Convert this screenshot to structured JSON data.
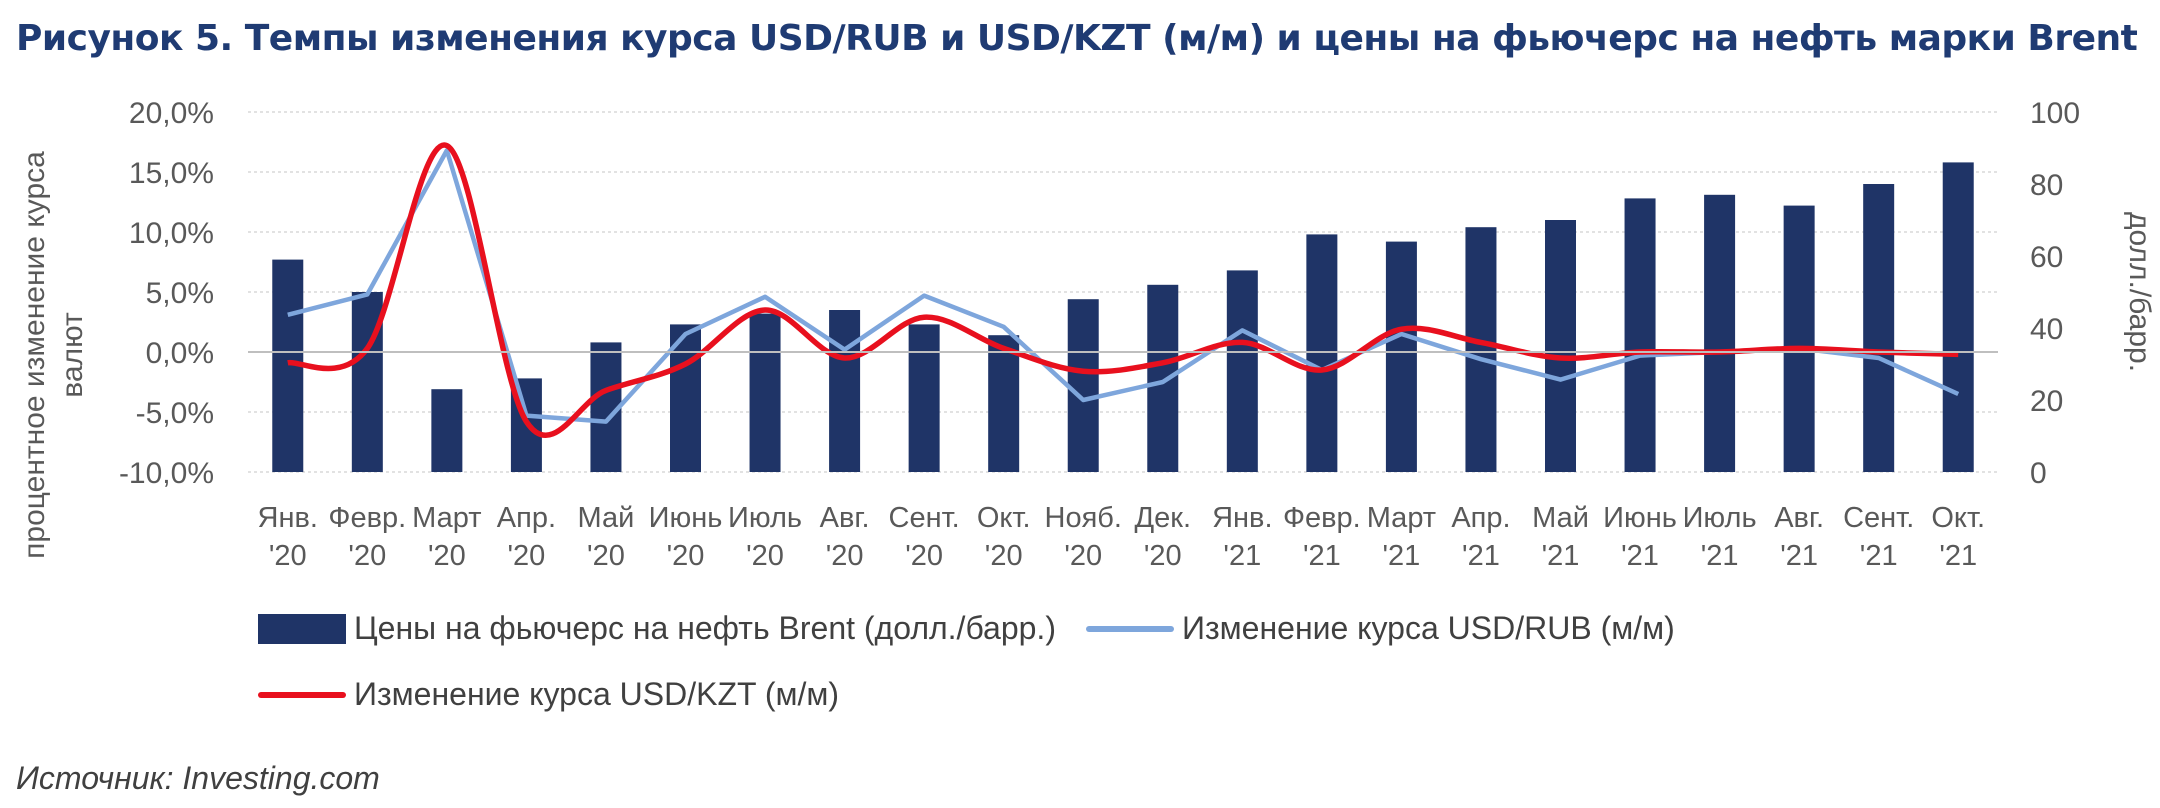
{
  "title": "Рисунок 5. Темпы изменения курса USD/RUB и USD/KZT (м/м) и цены на фьючерс на нефть марки Brent",
  "source": "Источник: Investing.com",
  "colors": {
    "bar": "#1f3467",
    "rub": "#7ea6dc",
    "kzt": "#e8101e",
    "title": "#1f3b73",
    "text": "#595959"
  },
  "chart_data": {
    "type": "bar",
    "categories": [
      [
        "Янв.",
        "'20"
      ],
      [
        "Февр.",
        "'20"
      ],
      [
        "Март",
        "'20"
      ],
      [
        "Апр.",
        "'20"
      ],
      [
        "Май",
        "'20"
      ],
      [
        "Июнь",
        "'20"
      ],
      [
        "Июль",
        "'20"
      ],
      [
        "Авг.",
        "'20"
      ],
      [
        "Сент.",
        "'20"
      ],
      [
        "Окт.",
        "'20"
      ],
      [
        "Нояб.",
        "'20"
      ],
      [
        "Дек.",
        "'20"
      ],
      [
        "Янв.",
        "'21"
      ],
      [
        "Февр.",
        "'21"
      ],
      [
        "Март",
        "'21"
      ],
      [
        "Апр.",
        "'21"
      ],
      [
        "Май",
        "'21"
      ],
      [
        "Июнь",
        "'21"
      ],
      [
        "Июль",
        "'21"
      ],
      [
        "Авг.",
        "'21"
      ],
      [
        "Сент.",
        "'21"
      ],
      [
        "Окт.",
        "'21"
      ]
    ],
    "series": [
      {
        "name": "Цены на фьючерс на нефть Brent (долл./барр.)",
        "type": "bar",
        "axis": "right",
        "values": [
          59,
          50,
          23,
          26,
          36,
          41,
          44,
          45,
          41,
          38,
          48,
          52,
          56,
          66,
          64,
          68,
          70,
          76,
          77,
          74,
          80,
          86
        ]
      },
      {
        "name": "Изменение курса USD/RUB (м/м)",
        "type": "line",
        "axis": "left",
        "values": [
          3.1,
          4.8,
          16.8,
          -5.3,
          -5.8,
          1.5,
          4.6,
          0.2,
          4.7,
          2.1,
          -4.0,
          -2.5,
          1.8,
          -1.5,
          1.5,
          -0.6,
          -2.3,
          -0.3,
          0.0,
          0.3,
          -0.5,
          -3.5
        ]
      },
      {
        "name": "Изменение курса USD/KZT (м/м)",
        "type": "line",
        "axis": "left",
        "values": [
          -0.9,
          0.3,
          17.2,
          -5.8,
          -3.2,
          -1.0,
          3.5,
          -0.5,
          2.9,
          0.3,
          -1.6,
          -0.9,
          0.8,
          -1.5,
          1.9,
          0.8,
          -0.5,
          0.0,
          0.0,
          0.3,
          0.0,
          -0.2
        ]
      }
    ],
    "y_left": {
      "label": "процентное изменение курса валют",
      "ylim": [
        -10,
        20
      ],
      "ticks": [
        "-10,0%",
        "-5,0%",
        "0,0%",
        "5,0%",
        "10,0%",
        "15,0%",
        "20,0%"
      ]
    },
    "y_right": {
      "label": "долл./барр.",
      "ylim": [
        0,
        100
      ],
      "ticks": [
        "0",
        "20",
        "40",
        "60",
        "80",
        "100"
      ]
    },
    "grid": true,
    "legend": "bottom"
  }
}
